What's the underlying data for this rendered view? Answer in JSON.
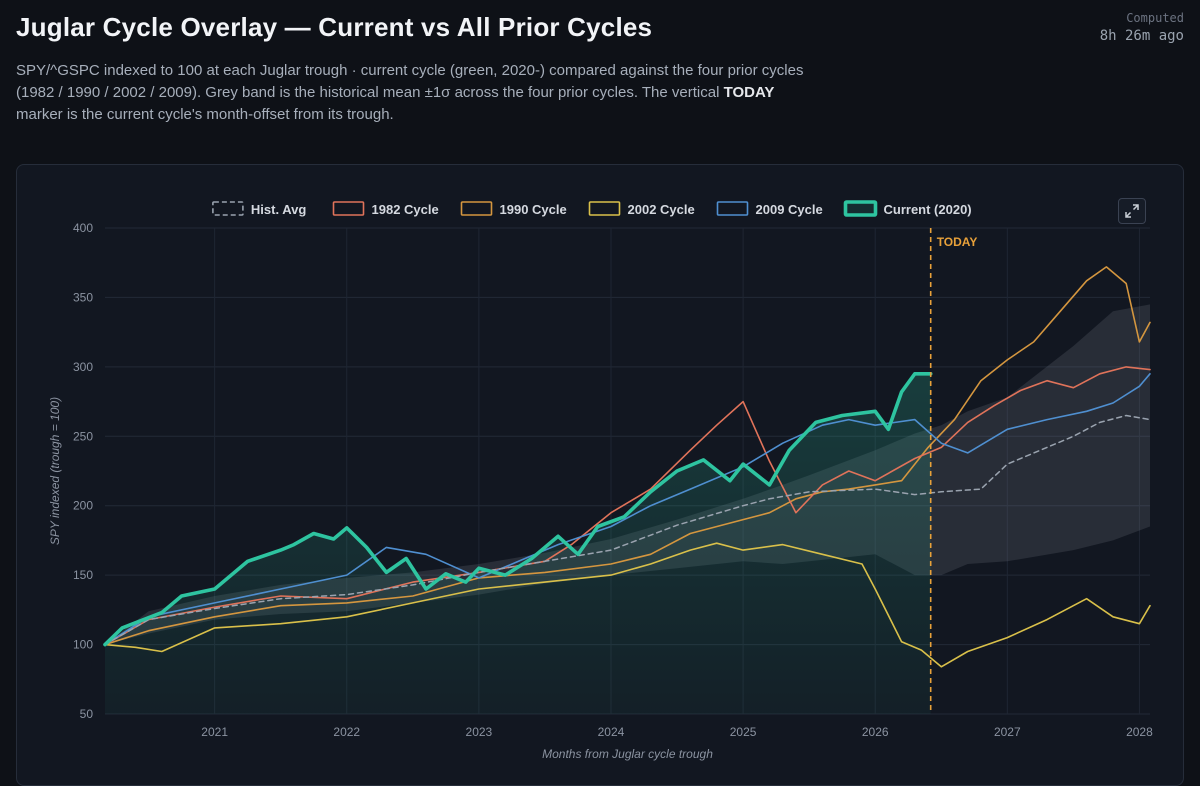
{
  "header": {
    "title": "Juglar Cycle Overlay — Current vs All Prior Cycles",
    "computed_label": "Computed",
    "computed_value": "8h 26m ago",
    "subtitle_part1": "SPY/^GSPC indexed to 100 at each Juglar trough · current cycle (green, 2020-) compared against the four prior cycles (1982 / 1990 / 2002 / 2009). Grey band is the historical mean ±1σ across the four prior cycles. The vertical ",
    "subtitle_bold": "TODAY",
    "subtitle_part2": " marker is the current cycle's month-offset from its trough."
  },
  "colors": {
    "background": "#0e1117",
    "current": "#2ec4a0",
    "c1982": "#e0735a",
    "c1990": "#d4963f",
    "c2002": "#d9c04a",
    "c2009": "#4f8fd0",
    "hist_avg": "#9aa3af",
    "today": "#e8a13a"
  },
  "chart_data": {
    "type": "line",
    "title": "",
    "xlabel": "Months from Juglar cycle trough",
    "ylabel": "SPY indexed (trough = 100)",
    "xlim": [
      2020.17,
      2028.08
    ],
    "ylim": [
      50,
      400
    ],
    "x_ticks": [
      2021,
      2022,
      2023,
      2024,
      2025,
      2026,
      2027,
      2028
    ],
    "y_ticks": [
      50,
      100,
      150,
      200,
      250,
      300,
      350,
      400
    ],
    "grid": true,
    "legend_position": "top-center",
    "today_x": 2026.42,
    "today_label": "TODAY",
    "legend": [
      {
        "name": "Hist. Avg",
        "color": "#9aa3af",
        "style": "dashed"
      },
      {
        "name": "1982 Cycle",
        "color": "#e0735a",
        "style": "solid"
      },
      {
        "name": "1990 Cycle",
        "color": "#d4963f",
        "style": "solid"
      },
      {
        "name": "2002 Cycle",
        "color": "#d9c04a",
        "style": "solid"
      },
      {
        "name": "2009 Cycle",
        "color": "#4f8fd0",
        "style": "solid"
      },
      {
        "name": "Current (2020)",
        "color": "#2ec4a0",
        "style": "bold"
      }
    ],
    "band": {
      "x": [
        2020.17,
        2020.5,
        2021.0,
        2021.5,
        2022.0,
        2022.5,
        2023.0,
        2023.5,
        2024.0,
        2024.5,
        2025.0,
        2025.3,
        2025.5,
        2026.0,
        2026.3,
        2026.5,
        2026.7,
        2027.0,
        2027.5,
        2027.8,
        2028.08
      ],
      "upper": [
        100,
        124,
        135,
        143,
        148,
        152,
        158,
        166,
        176,
        190,
        205,
        215,
        222,
        240,
        252,
        258,
        268,
        278,
        315,
        340,
        345
      ],
      "lower": [
        100,
        108,
        118,
        122,
        124,
        130,
        136,
        144,
        150,
        155,
        160,
        158,
        160,
        165,
        150,
        150,
        158,
        160,
        168,
        175,
        185
      ]
    },
    "series": [
      {
        "name": "Hist. Avg",
        "key": "hist_avg",
        "x": [
          2020.17,
          2020.5,
          2021.0,
          2021.5,
          2022.0,
          2022.5,
          2023.0,
          2023.5,
          2024.0,
          2024.5,
          2025.0,
          2025.2,
          2025.5,
          2026.0,
          2026.3,
          2026.5,
          2026.8,
          2027.0,
          2027.5,
          2027.7,
          2027.9,
          2028.08
        ],
        "y": [
          100,
          118,
          126,
          133,
          136,
          143,
          152,
          160,
          168,
          186,
          200,
          205,
          210,
          212,
          208,
          210,
          212,
          230,
          250,
          260,
          265,
          262
        ]
      },
      {
        "name": "1982 Cycle",
        "key": "c1982",
        "x": [
          2020.17,
          2020.5,
          2021.0,
          2021.5,
          2022.0,
          2022.5,
          2023.0,
          2023.5,
          2023.7,
          2024.0,
          2024.3,
          2024.6,
          2024.8,
          2025.0,
          2025.2,
          2025.4,
          2025.6,
          2025.8,
          2026.0,
          2026.3,
          2026.5,
          2026.7,
          2026.9,
          2027.1,
          2027.3,
          2027.5,
          2027.7,
          2027.9,
          2028.08
        ],
        "y": [
          100,
          118,
          127,
          135,
          133,
          145,
          152,
          160,
          172,
          195,
          212,
          240,
          258,
          275,
          232,
          195,
          215,
          225,
          218,
          234,
          242,
          260,
          272,
          283,
          290,
          285,
          295,
          300,
          298
        ]
      },
      {
        "name": "1990 Cycle",
        "key": "c1990",
        "x": [
          2020.17,
          2020.5,
          2021.0,
          2021.5,
          2022.0,
          2022.5,
          2023.0,
          2023.5,
          2024.0,
          2024.3,
          2024.6,
          2025.0,
          2025.2,
          2025.4,
          2025.6,
          2025.8,
          2026.0,
          2026.2,
          2026.4,
          2026.6,
          2026.8,
          2027.0,
          2027.2,
          2027.4,
          2027.6,
          2027.75,
          2027.9,
          2028.0,
          2028.08
        ],
        "y": [
          100,
          110,
          120,
          128,
          130,
          135,
          148,
          152,
          158,
          165,
          180,
          190,
          195,
          205,
          210,
          212,
          215,
          218,
          242,
          262,
          290,
          305,
          318,
          340,
          362,
          372,
          360,
          318,
          332
        ]
      },
      {
        "name": "2002 Cycle",
        "key": "c2002",
        "x": [
          2020.17,
          2020.4,
          2020.6,
          2021.0,
          2021.5,
          2022.0,
          2022.5,
          2023.0,
          2023.5,
          2024.0,
          2024.3,
          2024.6,
          2024.8,
          2025.0,
          2025.3,
          2025.6,
          2025.9,
          2026.0,
          2026.2,
          2026.35,
          2026.5,
          2026.7,
          2027.0,
          2027.3,
          2027.6,
          2027.8,
          2028.0,
          2028.08
        ],
        "y": [
          100,
          98,
          95,
          112,
          115,
          120,
          130,
          140,
          145,
          150,
          158,
          168,
          173,
          168,
          172,
          165,
          158,
          140,
          102,
          96,
          84,
          95,
          105,
          118,
          133,
          120,
          115,
          128
        ]
      },
      {
        "name": "2009 Cycle",
        "key": "c2009",
        "x": [
          2020.17,
          2020.5,
          2021.0,
          2021.5,
          2022.0,
          2022.3,
          2022.6,
          2023.0,
          2023.3,
          2023.6,
          2024.0,
          2024.3,
          2024.6,
          2025.0,
          2025.3,
          2025.6,
          2025.8,
          2026.0,
          2026.3,
          2026.5,
          2026.7,
          2027.0,
          2027.3,
          2027.6,
          2027.8,
          2028.0,
          2028.08
        ],
        "y": [
          100,
          120,
          130,
          140,
          150,
          170,
          165,
          148,
          160,
          172,
          185,
          200,
          212,
          228,
          245,
          258,
          262,
          258,
          262,
          245,
          238,
          255,
          262,
          268,
          274,
          286,
          295
        ]
      },
      {
        "name": "Current (2020)",
        "key": "current",
        "x": [
          2020.17,
          2020.3,
          2020.6,
          2020.75,
          2021.0,
          2021.25,
          2021.5,
          2021.6,
          2021.75,
          2021.9,
          2022.0,
          2022.15,
          2022.3,
          2022.45,
          2022.6,
          2022.75,
          2022.9,
          2023.0,
          2023.2,
          2023.4,
          2023.6,
          2023.75,
          2023.9,
          2024.1,
          2024.3,
          2024.5,
          2024.7,
          2024.9,
          2025.0,
          2025.2,
          2025.35,
          2025.55,
          2025.75,
          2026.0,
          2026.1,
          2026.2,
          2026.3,
          2026.42
        ],
        "y": [
          100,
          112,
          123,
          135,
          140,
          160,
          168,
          172,
          180,
          176,
          184,
          170,
          152,
          162,
          140,
          151,
          145,
          155,
          150,
          162,
          178,
          165,
          185,
          192,
          210,
          225,
          233,
          218,
          230,
          215,
          240,
          260,
          265,
          268,
          255,
          282,
          295,
          295
        ]
      }
    ]
  }
}
